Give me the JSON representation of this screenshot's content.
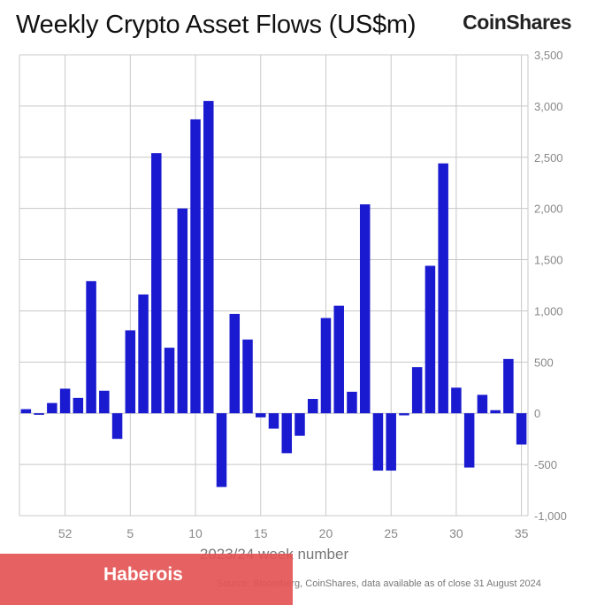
{
  "title": "Weekly Crypto Asset Flows (US$m)",
  "brand": "CoinShares",
  "watermark": "Haberois",
  "source": "Source: Bloomberg, CoinShares, data available as of close 31 August 2024",
  "colors": {
    "bar": "#1a1ad0",
    "grid": "#c8c8c8",
    "axis_text": "#888888"
  },
  "chart_data": {
    "type": "bar",
    "title": "Weekly Crypto Asset Flows (US$m)",
    "xlabel": "2023/24 week number",
    "ylabel": "",
    "ylim": [
      -1000,
      3500
    ],
    "yticks": [
      -1000,
      -500,
      0,
      500,
      1000,
      1500,
      2000,
      2500,
      3000,
      3500
    ],
    "y_axis_side": "right",
    "grid": true,
    "x_tick_labels": [
      "52",
      "5",
      "10",
      "15",
      "20",
      "25",
      "30",
      "35"
    ],
    "categories": [
      "49",
      "50",
      "51",
      "52",
      "1",
      "2",
      "3",
      "4",
      "5",
      "6",
      "7",
      "8",
      "9",
      "10",
      "11",
      "12",
      "13",
      "14",
      "15",
      "16",
      "17",
      "18",
      "19",
      "20",
      "21",
      "22",
      "23",
      "24",
      "25",
      "26",
      "27",
      "28",
      "29",
      "30",
      "31",
      "32",
      "33",
      "34",
      "35"
    ],
    "values": [
      40,
      -15,
      100,
      240,
      150,
      1290,
      220,
      -250,
      810,
      1160,
      2540,
      640,
      2000,
      2870,
      3050,
      -720,
      970,
      720,
      -40,
      -150,
      -390,
      -220,
      140,
      930,
      1050,
      210,
      2040,
      -560,
      -560,
      -20,
      450,
      1440,
      2440,
      250,
      -530,
      180,
      30,
      530,
      -305
    ]
  }
}
